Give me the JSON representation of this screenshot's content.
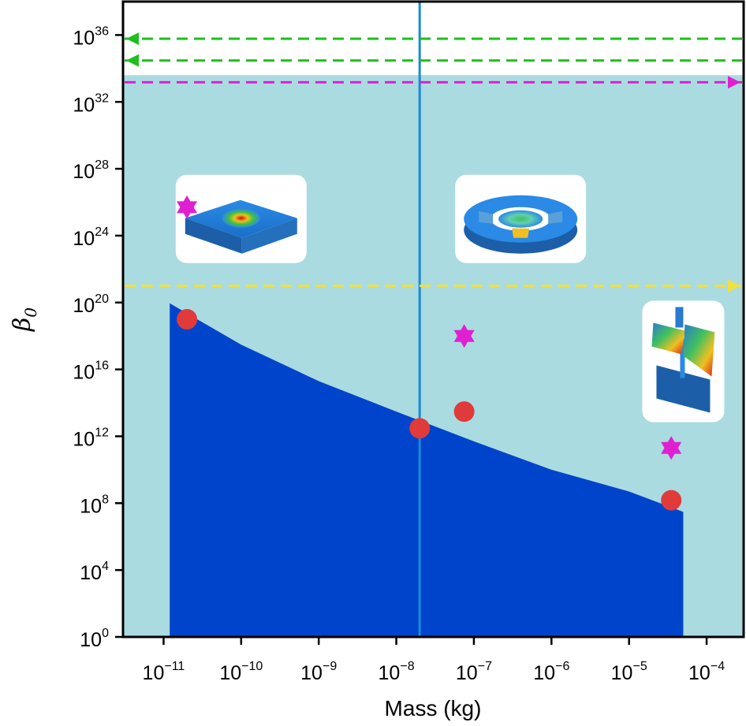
{
  "chart_data": {
    "type": "scatter",
    "title": "",
    "xlabel": "Mass (kg)",
    "ylabel_symbol": "β",
    "ylabel_subscript": "0",
    "x_scale": "log",
    "y_scale": "log",
    "xlim": [
      3e-12,
      0.0003
    ],
    "ylim": [
      1,
      1e+38
    ],
    "x_ticks": [
      {
        "base": "10",
        "exp": "−11",
        "value": 1e-11
      },
      {
        "base": "10",
        "exp": "−10",
        "value": 1e-10
      },
      {
        "base": "10",
        "exp": "−9",
        "value": 1e-09
      },
      {
        "base": "10",
        "exp": "−8",
        "value": 1e-08
      },
      {
        "base": "10",
        "exp": "−7",
        "value": 1e-07
      },
      {
        "base": "10",
        "exp": "−6",
        "value": 1e-06
      },
      {
        "base": "10",
        "exp": "−5",
        "value": 1e-05
      },
      {
        "base": "10",
        "exp": "−4",
        "value": 0.0001
      }
    ],
    "y_ticks": [
      {
        "base": "10",
        "exp": "0",
        "value": 1
      },
      {
        "base": "10",
        "exp": "4",
        "value": 10000.0
      },
      {
        "base": "10",
        "exp": "8",
        "value": 100000000.0
      },
      {
        "base": "10",
        "exp": "12",
        "value": 1000000000000.0
      },
      {
        "base": "10",
        "exp": "16",
        "value": 1e+16
      },
      {
        "base": "10",
        "exp": "20",
        "value": 1e+20
      },
      {
        "base": "10",
        "exp": "24",
        "value": 1e+24
      },
      {
        "base": "10",
        "exp": "28",
        "value": 1e+28
      },
      {
        "base": "10",
        "exp": "32",
        "value": 1e+32
      },
      {
        "base": "10",
        "exp": "36",
        "value": 1e+36
      }
    ],
    "background_region": {
      "y_max": 4e+33,
      "color": "#aadbe0"
    },
    "blue_region": {
      "color": "#0044cc",
      "boundary": [
        {
          "x": 1.2e-11,
          "y": 9e+19
        },
        {
          "x": 1e-10,
          "y": 3e+17
        },
        {
          "x": 1e-09,
          "y": 2000000000000000.0
        },
        {
          "x": 1e-08,
          "y": 30000000000000.0
        },
        {
          "x": 1e-07,
          "y": 500000000000.0
        },
        {
          "x": 1e-06,
          "y": 10000000000.0
        },
        {
          "x": 1e-05,
          "y": 500000000.0
        },
        {
          "x": 5e-05,
          "y": 30000000.0
        }
      ]
    },
    "vertical_line": {
      "x": 2e-08,
      "color": "#1a8ad6"
    },
    "green_arrows": {
      "color": "#1fbf1f",
      "y_values": [
        6e+35,
        3e+34
      ]
    },
    "magenta_arrow": {
      "color": "#e020d0",
      "y_value": 1.5e+33
    },
    "yellow_arrow": {
      "color": "#f0e040",
      "y_value": 1e+21
    },
    "red_points": {
      "color": "#e03a3a",
      "points": [
        {
          "x": 2e-11,
          "y": 1e+19
        },
        {
          "x": 2e-08,
          "y": 3000000000000.0
        },
        {
          "x": 7.5e-08,
          "y": 30000000000000.0
        },
        {
          "x": 3.5e-05,
          "y": 150000000.0
        }
      ]
    },
    "magenta_stars": {
      "color": "#e020d0",
      "points": [
        {
          "x": 2e-11,
          "y": 5e+25
        },
        {
          "x": 7.5e-08,
          "y": 1e+18
        },
        {
          "x": 3.5e-05,
          "y": 200000000000.0
        }
      ]
    },
    "insets": [
      {
        "name": "square-membrane-simulation",
        "x": 1e-10,
        "y": 1e+25
      },
      {
        "name": "disc-resonator-simulation",
        "x": 4e-07,
        "y": 1e+25
      },
      {
        "name": "cantilever-paddle-simulation",
        "x": 5e-05,
        "y": 3e+16
      }
    ]
  }
}
